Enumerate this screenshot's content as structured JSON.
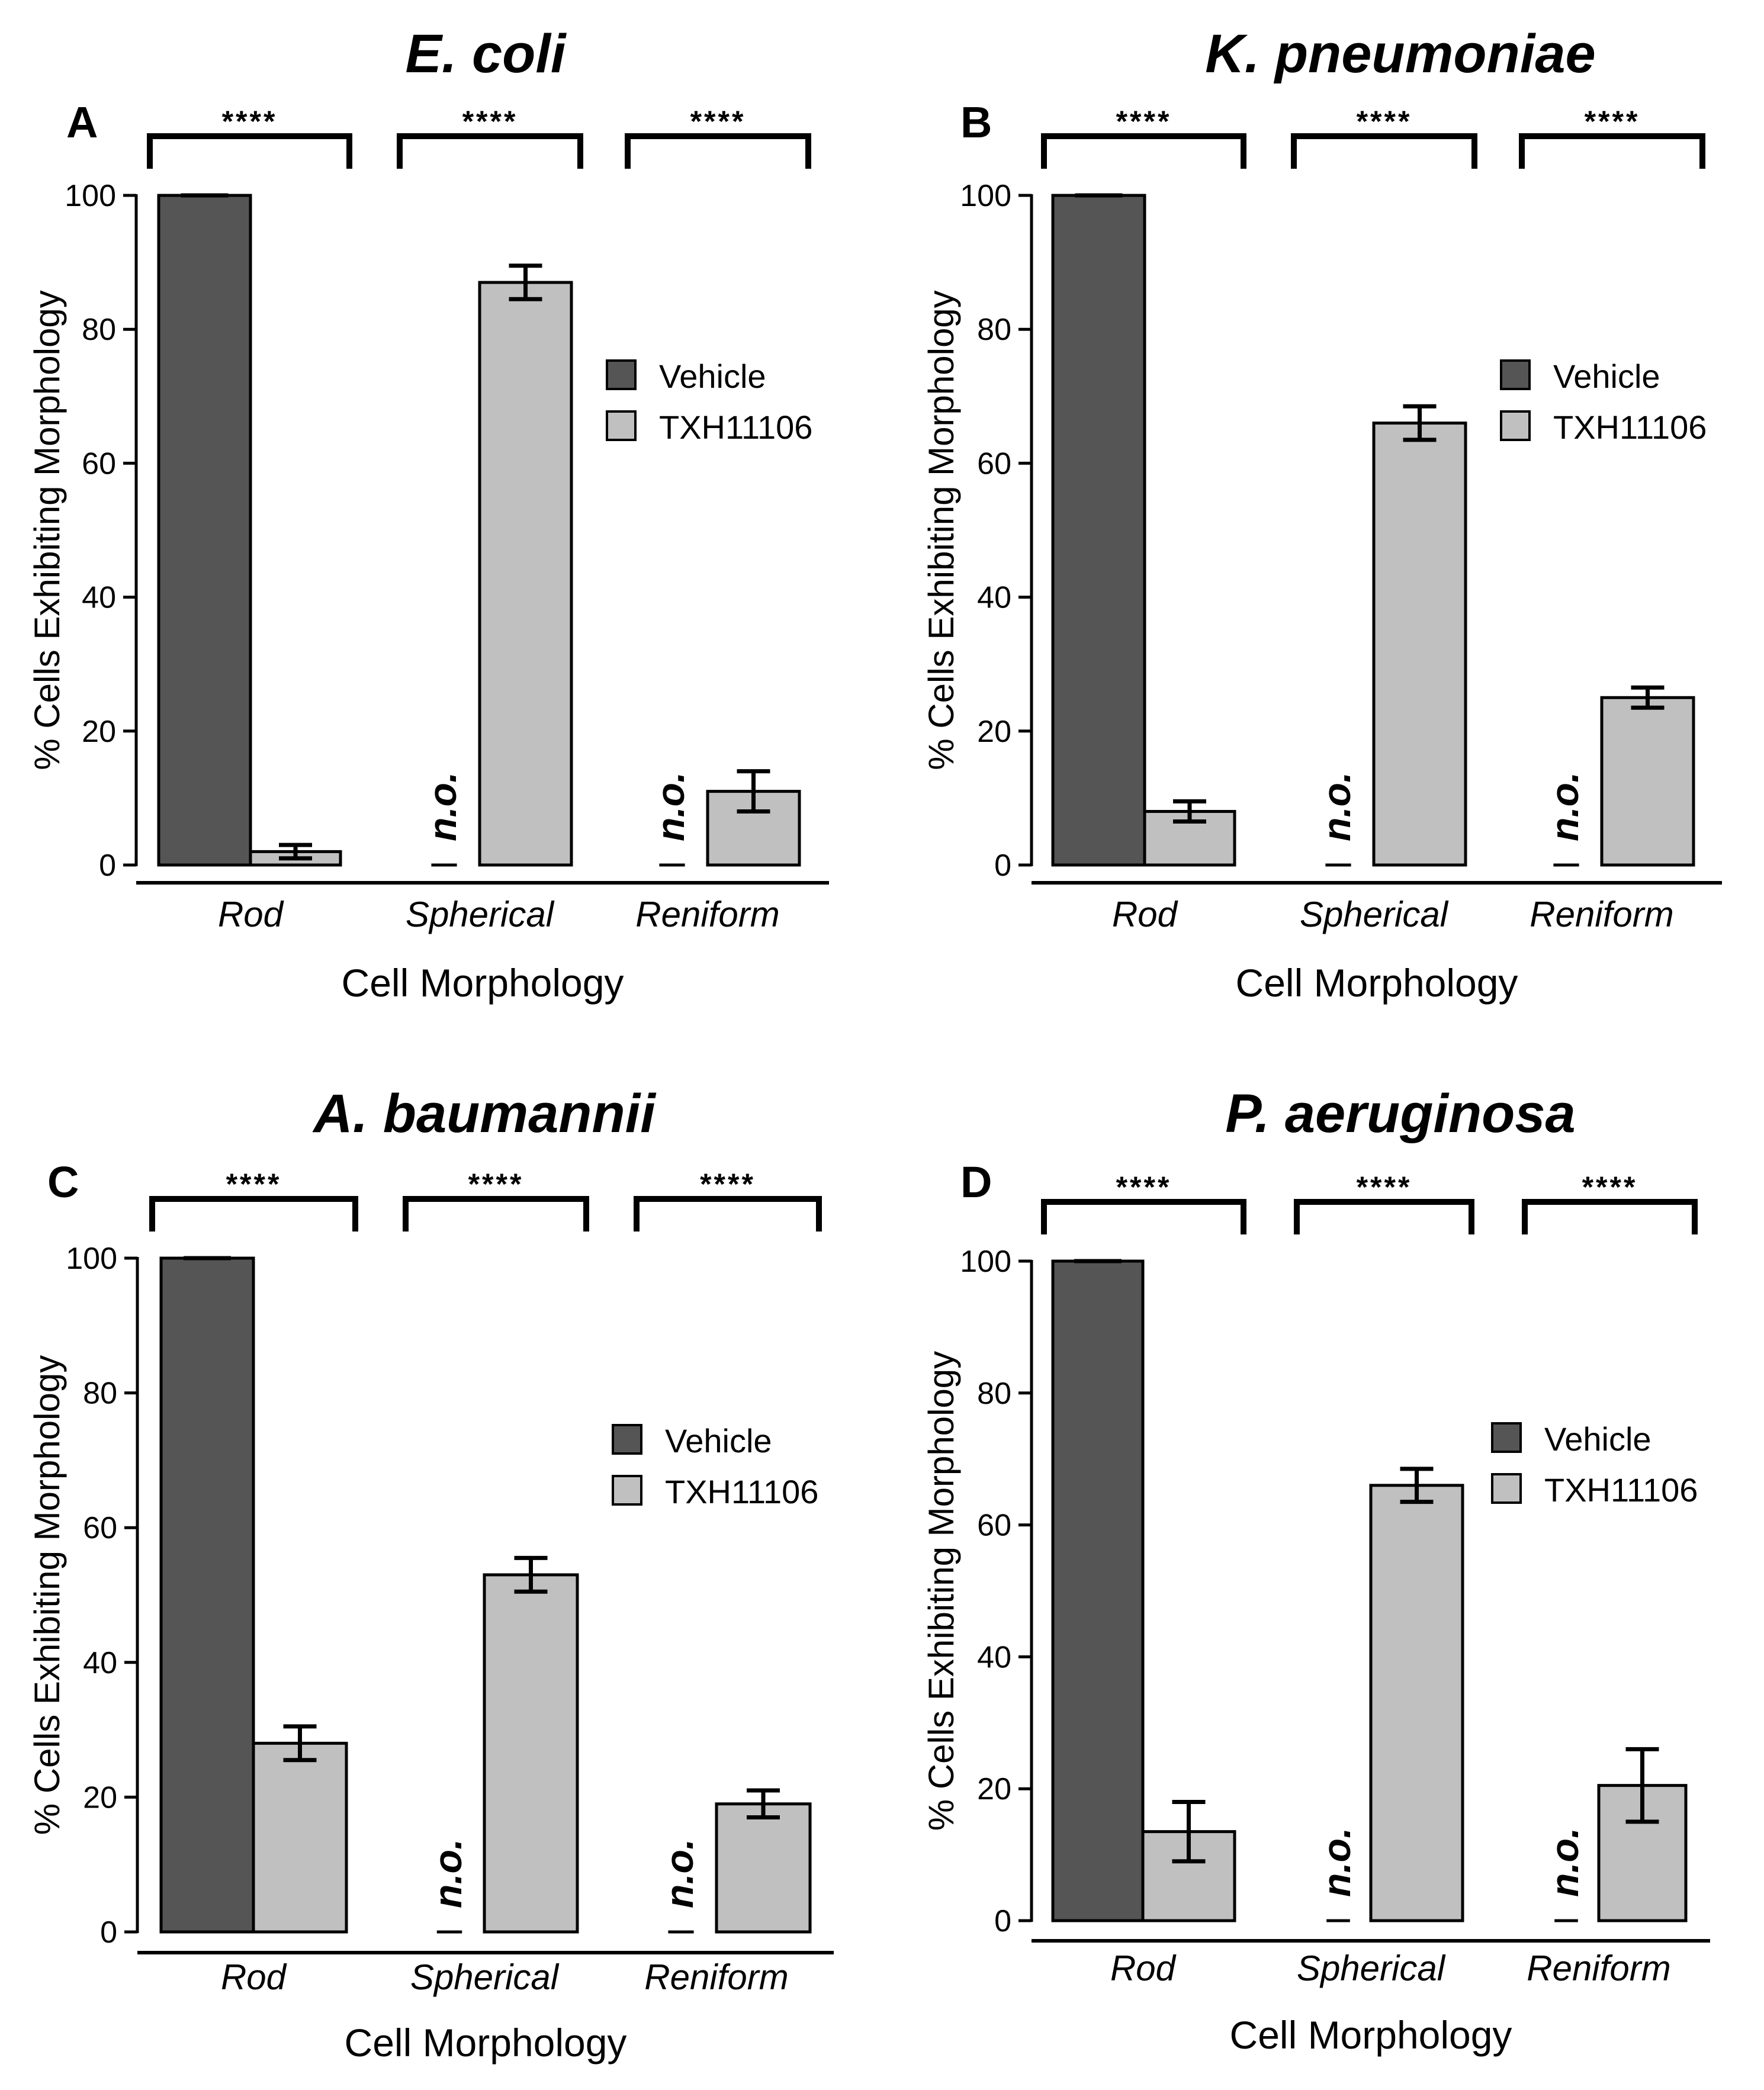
{
  "figure": {
    "x_axis_label": "Cell Morphology",
    "y_axis_label": "% Cells Exhibiting Morphology",
    "significance_label": "****",
    "not_observed_label": "n.o."
  },
  "colors": {
    "vehicle": "#555555",
    "txh11106": "#c0c0c0",
    "axis": "#000000"
  },
  "chart_data": [
    {
      "type": "bar",
      "panel": "A",
      "title": "E. coli",
      "xlabel": "Cell Morphology",
      "ylabel": "% Cells Exhibiting Morphology",
      "categories": [
        "Rod",
        "Spherical",
        "Reniform"
      ],
      "yticks": [
        0,
        20,
        40,
        60,
        80,
        100
      ],
      "ylim": [
        0,
        100
      ],
      "legend": [
        "Vehicle",
        "TXH11106"
      ],
      "series": [
        {
          "name": "Vehicle",
          "values": [
            100,
            0,
            0
          ],
          "errors": [
            0,
            0,
            0
          ],
          "labels": [
            "",
            "n.o.",
            "n.o."
          ]
        },
        {
          "name": "TXH11106",
          "values": [
            2,
            87,
            11
          ],
          "errors": [
            1,
            2.5,
            3
          ],
          "labels": [
            "",
            "",
            ""
          ]
        }
      ],
      "significance": [
        "****",
        "****",
        "****"
      ]
    },
    {
      "type": "bar",
      "panel": "B",
      "title": "K. pneumoniae",
      "xlabel": "Cell Morphology",
      "ylabel": "% Cells Exhibiting Morphology",
      "categories": [
        "Rod",
        "Spherical",
        "Reniform"
      ],
      "yticks": [
        0,
        20,
        40,
        60,
        80,
        100
      ],
      "ylim": [
        0,
        100
      ],
      "legend": [
        "Vehicle",
        "TXH11106"
      ],
      "series": [
        {
          "name": "Vehicle",
          "values": [
            100,
            0,
            0
          ],
          "errors": [
            0,
            0,
            0
          ],
          "labels": [
            "",
            "n.o.",
            "n.o."
          ]
        },
        {
          "name": "TXH11106",
          "values": [
            8,
            66,
            25
          ],
          "errors": [
            1.5,
            2.5,
            1.5
          ],
          "labels": [
            "",
            "",
            ""
          ]
        }
      ],
      "significance": [
        "****",
        "****",
        "****"
      ]
    },
    {
      "type": "bar",
      "panel": "C",
      "title": "A. baumannii",
      "xlabel": "Cell Morphology",
      "ylabel": "% Cells Exhibiting Morphology",
      "categories": [
        "Rod",
        "Spherical",
        "Reniform"
      ],
      "yticks": [
        0,
        20,
        40,
        60,
        80,
        100
      ],
      "ylim": [
        0,
        100
      ],
      "legend": [
        "Vehicle",
        "TXH11106"
      ],
      "series": [
        {
          "name": "Vehicle",
          "values": [
            100,
            0,
            0
          ],
          "errors": [
            0,
            0,
            0
          ],
          "labels": [
            "",
            "n.o.",
            "n.o."
          ]
        },
        {
          "name": "TXH11106",
          "values": [
            28,
            53,
            19
          ],
          "errors": [
            2.5,
            2.5,
            2
          ],
          "labels": [
            "",
            "",
            ""
          ]
        }
      ],
      "significance": [
        "****",
        "****",
        "****"
      ]
    },
    {
      "type": "bar",
      "panel": "D",
      "title": "P. aeruginosa",
      "xlabel": "Cell Morphology",
      "ylabel": "% Cells Exhibiting Morphology",
      "categories": [
        "Rod",
        "Spherical",
        "Reniform"
      ],
      "yticks": [
        0,
        20,
        40,
        60,
        80,
        100
      ],
      "ylim": [
        0,
        100
      ],
      "legend": [
        "Vehicle",
        "TXH11106"
      ],
      "series": [
        {
          "name": "Vehicle",
          "values": [
            100,
            0,
            0
          ],
          "errors": [
            0,
            0,
            0
          ],
          "labels": [
            "",
            "n.o.",
            "n.o."
          ]
        },
        {
          "name": "TXH11106",
          "values": [
            13.5,
            66,
            20.5
          ],
          "errors": [
            4.5,
            2.5,
            5.5
          ],
          "labels": [
            "",
            "",
            ""
          ]
        }
      ],
      "significance": [
        "****",
        "****",
        "****"
      ]
    }
  ]
}
